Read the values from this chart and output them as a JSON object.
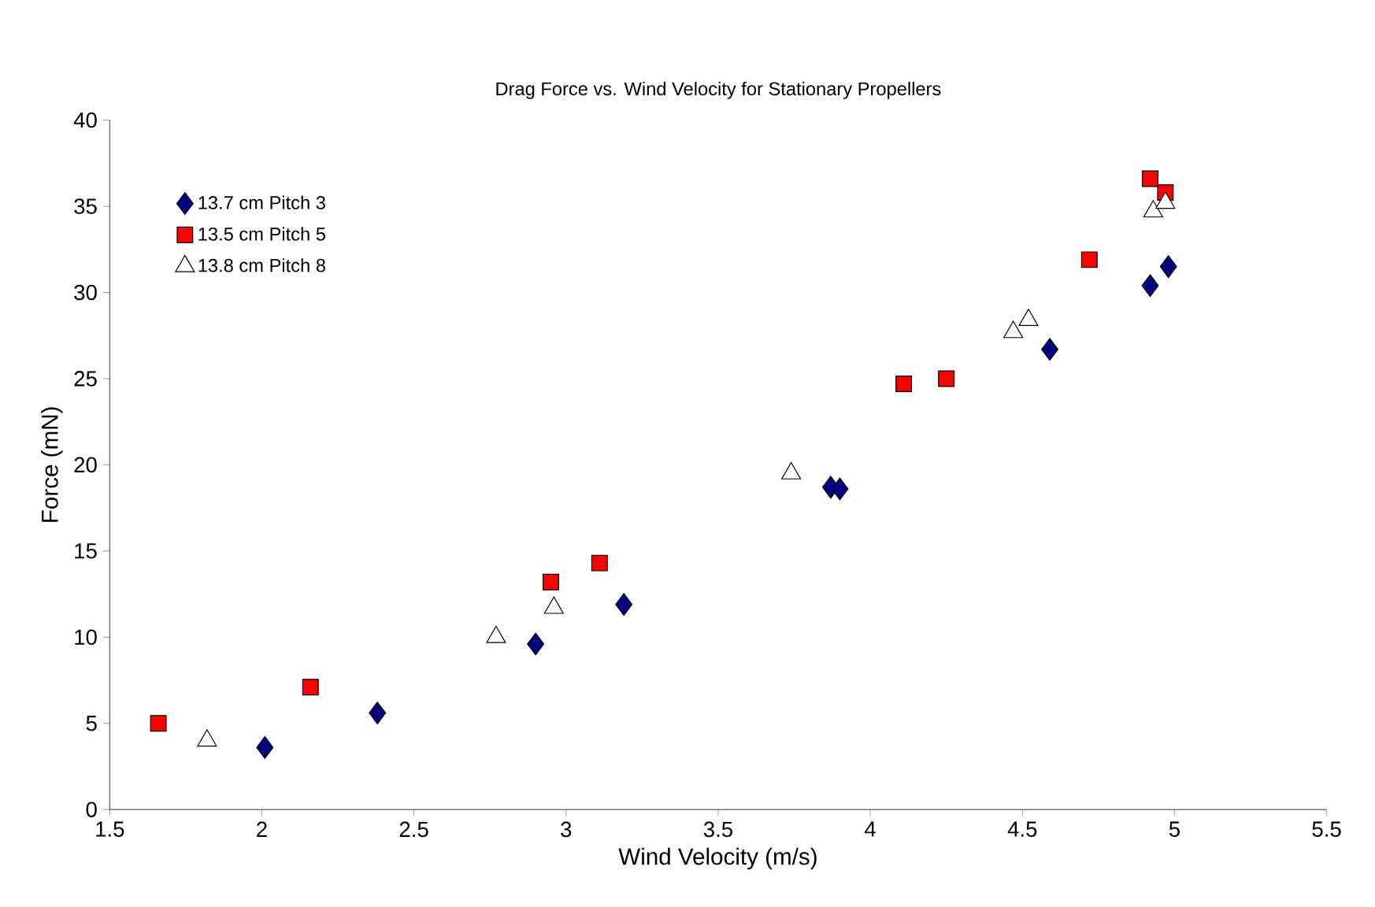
{
  "chart_data": {
    "type": "scatter",
    "title": "Drag Force vs. Wind Velocity for Stationary Propellers",
    "xlabel": "Wind Velocity (m/s)",
    "ylabel": "Force (mN)",
    "xlim": [
      1.5,
      5.5
    ],
    "xticks": [
      1.5,
      2,
      2.5,
      3,
      3.5,
      4,
      4.5,
      5,
      5.5
    ],
    "ylim": [
      0,
      40
    ],
    "yticks": [
      0,
      5,
      10,
      15,
      20,
      25,
      30,
      35,
      40
    ],
    "grid": false,
    "legend": "top left",
    "series": [
      {
        "name": "13.7 cm Pitch 3",
        "color": "#000080",
        "marker": "diamond",
        "x": [
          2.01,
          2.38,
          2.9,
          3.19,
          3.87,
          3.9,
          4.59,
          4.92,
          4.98
        ],
        "values": [
          3.6,
          5.6,
          9.6,
          11.9,
          18.7,
          18.6,
          26.7,
          30.4,
          31.5
        ]
      },
      {
        "name": "13.5 cm Pitch 5",
        "color": "#ff0000",
        "marker": "square",
        "x": [
          1.66,
          2.16,
          2.95,
          3.11,
          4.11,
          4.25,
          4.72,
          4.92,
          4.97
        ],
        "values": [
          5.0,
          7.1,
          13.2,
          14.3,
          24.7,
          25.0,
          31.9,
          36.6,
          35.8
        ]
      },
      {
        "name": "13.8 cm Pitch 8",
        "color": "#ffffff",
        "marker": "triangle",
        "x": [
          1.82,
          2.77,
          2.96,
          3.74,
          4.47,
          4.52,
          4.93,
          4.97
        ],
        "values": [
          4.0,
          10.0,
          11.7,
          19.5,
          27.7,
          28.4,
          34.7,
          35.2
        ]
      }
    ]
  }
}
